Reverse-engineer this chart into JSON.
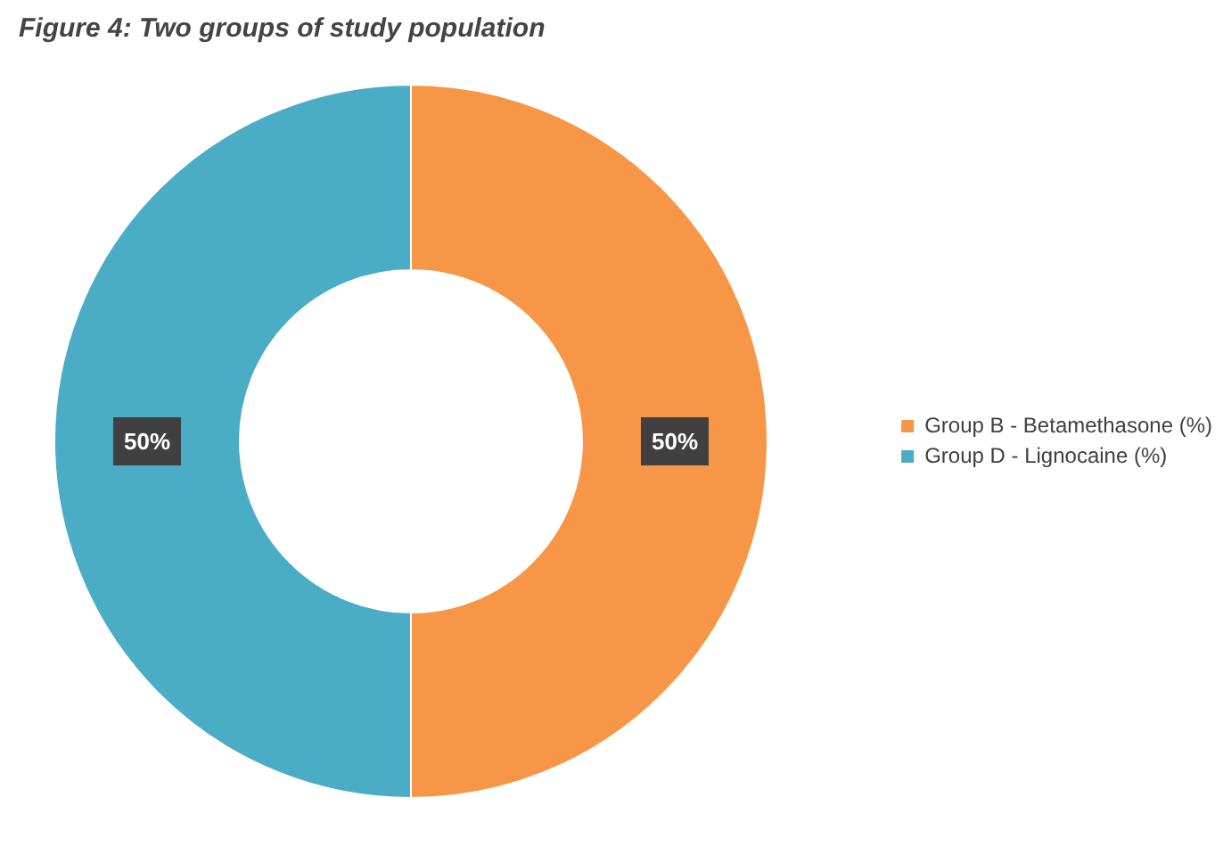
{
  "chart_data": {
    "type": "donut",
    "title": "Figure 4: Two groups of study population",
    "categories": [
      "Group B - Betamethasone (%)",
      "Group D - Lignocaine (%)"
    ],
    "values": [
      50,
      50
    ],
    "colors": [
      "#f79646",
      "#4bacc6"
    ],
    "value_labels": [
      "50%",
      "50%"
    ],
    "legend": "right"
  }
}
